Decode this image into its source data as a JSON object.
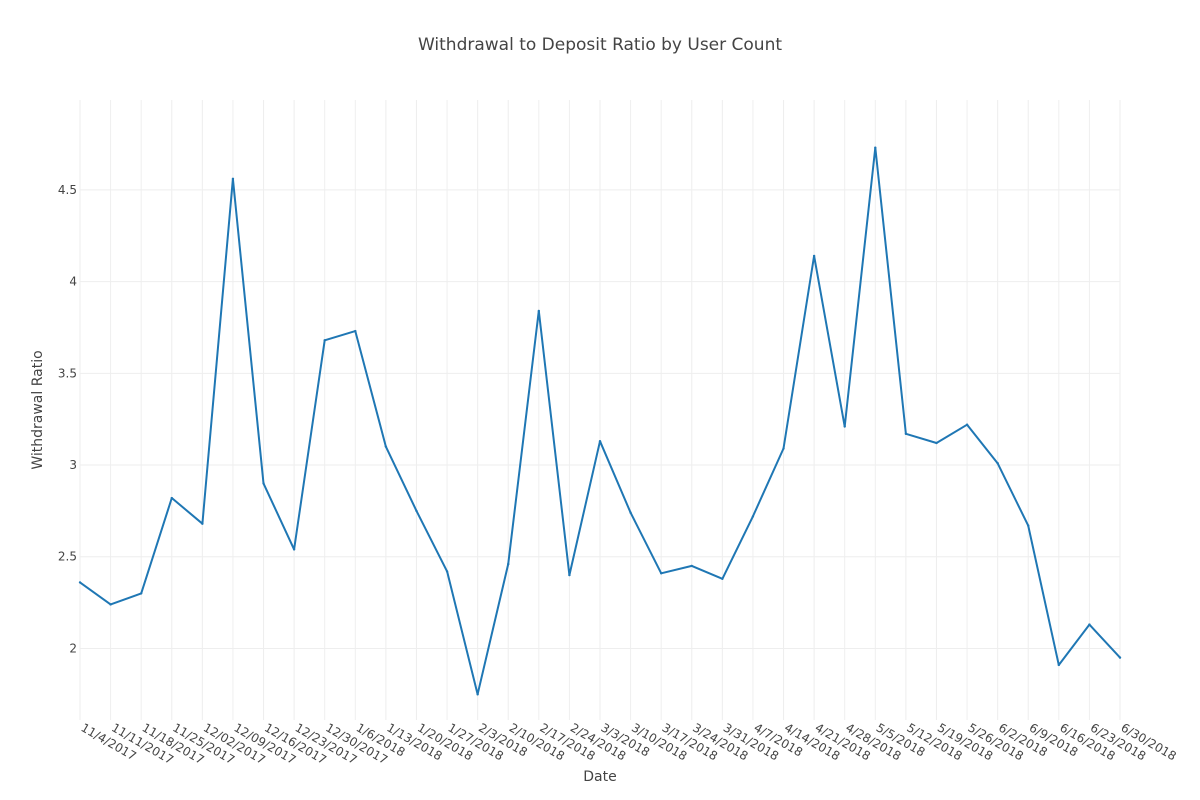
{
  "chart_data": {
    "type": "line",
    "title": "Withdrawal to Deposit Ratio by User Count",
    "xlabel": "Date",
    "ylabel": "Withdrawal Ratio",
    "x": [
      "11/4/2017",
      "11/11/2017",
      "11/18/2017",
      "11/25/2017",
      "12/02/2017",
      "12/09/2017",
      "12/16/2017",
      "12/23/2017",
      "12/30/2017",
      "1/6/2018",
      "1/13/2018",
      "1/20/2018",
      "1/27/2018",
      "2/3/2018",
      "2/10/2018",
      "2/17/2018",
      "2/24/2018",
      "3/3/2018",
      "3/10/2018",
      "3/17/2018",
      "3/24/2018",
      "3/31/2018",
      "4/7/2018",
      "4/14/2018",
      "4/21/2018",
      "4/28/2018",
      "5/5/2018",
      "5/12/2018",
      "5/19/2018",
      "5/26/2018",
      "6/2/2018",
      "6/9/2018",
      "6/16/2018",
      "6/23/2018",
      "6/30/2018"
    ],
    "series": [
      {
        "values": [
          2.36,
          2.24,
          2.3,
          2.82,
          2.68,
          4.56,
          2.9,
          2.54,
          3.68,
          3.73,
          3.1,
          2.75,
          2.42,
          1.75,
          2.46,
          3.84,
          2.4,
          3.13,
          2.74,
          2.41,
          2.45,
          2.38,
          2.72,
          3.09,
          4.14,
          3.21,
          4.73,
          3.17,
          3.12,
          3.22,
          3.01,
          2.67,
          1.91,
          2.13,
          1.95
        ],
        "color": "#1f77b4"
      }
    ],
    "yticks": [
      2,
      2.5,
      3,
      3.5,
      4,
      4.5
    ],
    "ytick_labels": [
      "2",
      "2.5",
      "3",
      "3.5",
      "4",
      "4.5"
    ],
    "ylim": [
      1.61,
      4.99
    ],
    "grid": true,
    "legend": "none"
  }
}
